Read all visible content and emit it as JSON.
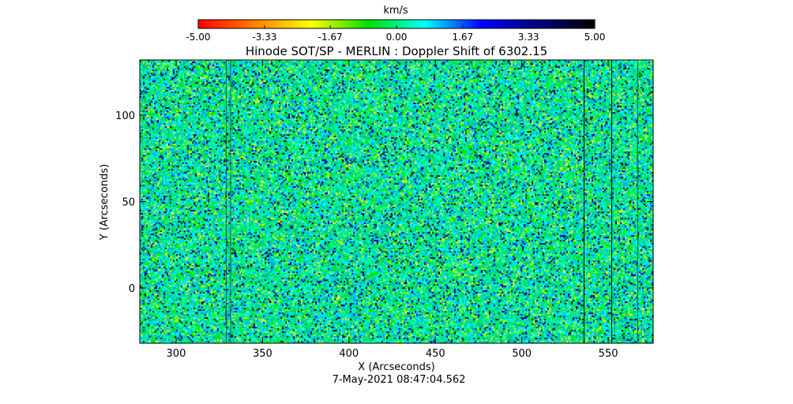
{
  "chart_data": {
    "type": "heatmap",
    "title": "Hinode SOT/SP - MERLIN : Doppler Shift of 6302.15",
    "xlabel": "X (Arcseconds)",
    "ylabel": "Y (Arcseconds)",
    "timestamp": "7-May-2021 08:47:04.562",
    "xlim": [
      279,
      576
    ],
    "ylim": [
      -32,
      132
    ],
    "x_ticks": [
      300,
      350,
      400,
      450,
      500,
      550
    ],
    "y_ticks": [
      0,
      50,
      100
    ],
    "x_tick_labels": [
      "300",
      "350",
      "400",
      "450",
      "500",
      "550"
    ],
    "y_tick_labels": [
      "0",
      "50",
      "100"
    ],
    "colorbar": {
      "label": "km/s",
      "range": [
        -5.0,
        5.0
      ],
      "ticks": [
        -5.0,
        -3.33,
        -1.67,
        0.0,
        1.67,
        3.33,
        5.0
      ],
      "tick_labels": [
        "-5.00",
        "-3.33",
        "-1.67",
        "0.00",
        "1.67",
        "3.33",
        "5.00"
      ],
      "colors": [
        "#ff0000",
        "#ff8000",
        "#ffff00",
        "#00e000",
        "#00ffff",
        "#0000ff",
        "#000080",
        "#000000"
      ]
    },
    "data_gaps_x": [
      329,
      331.5,
      536,
      552,
      567
    ]
  }
}
